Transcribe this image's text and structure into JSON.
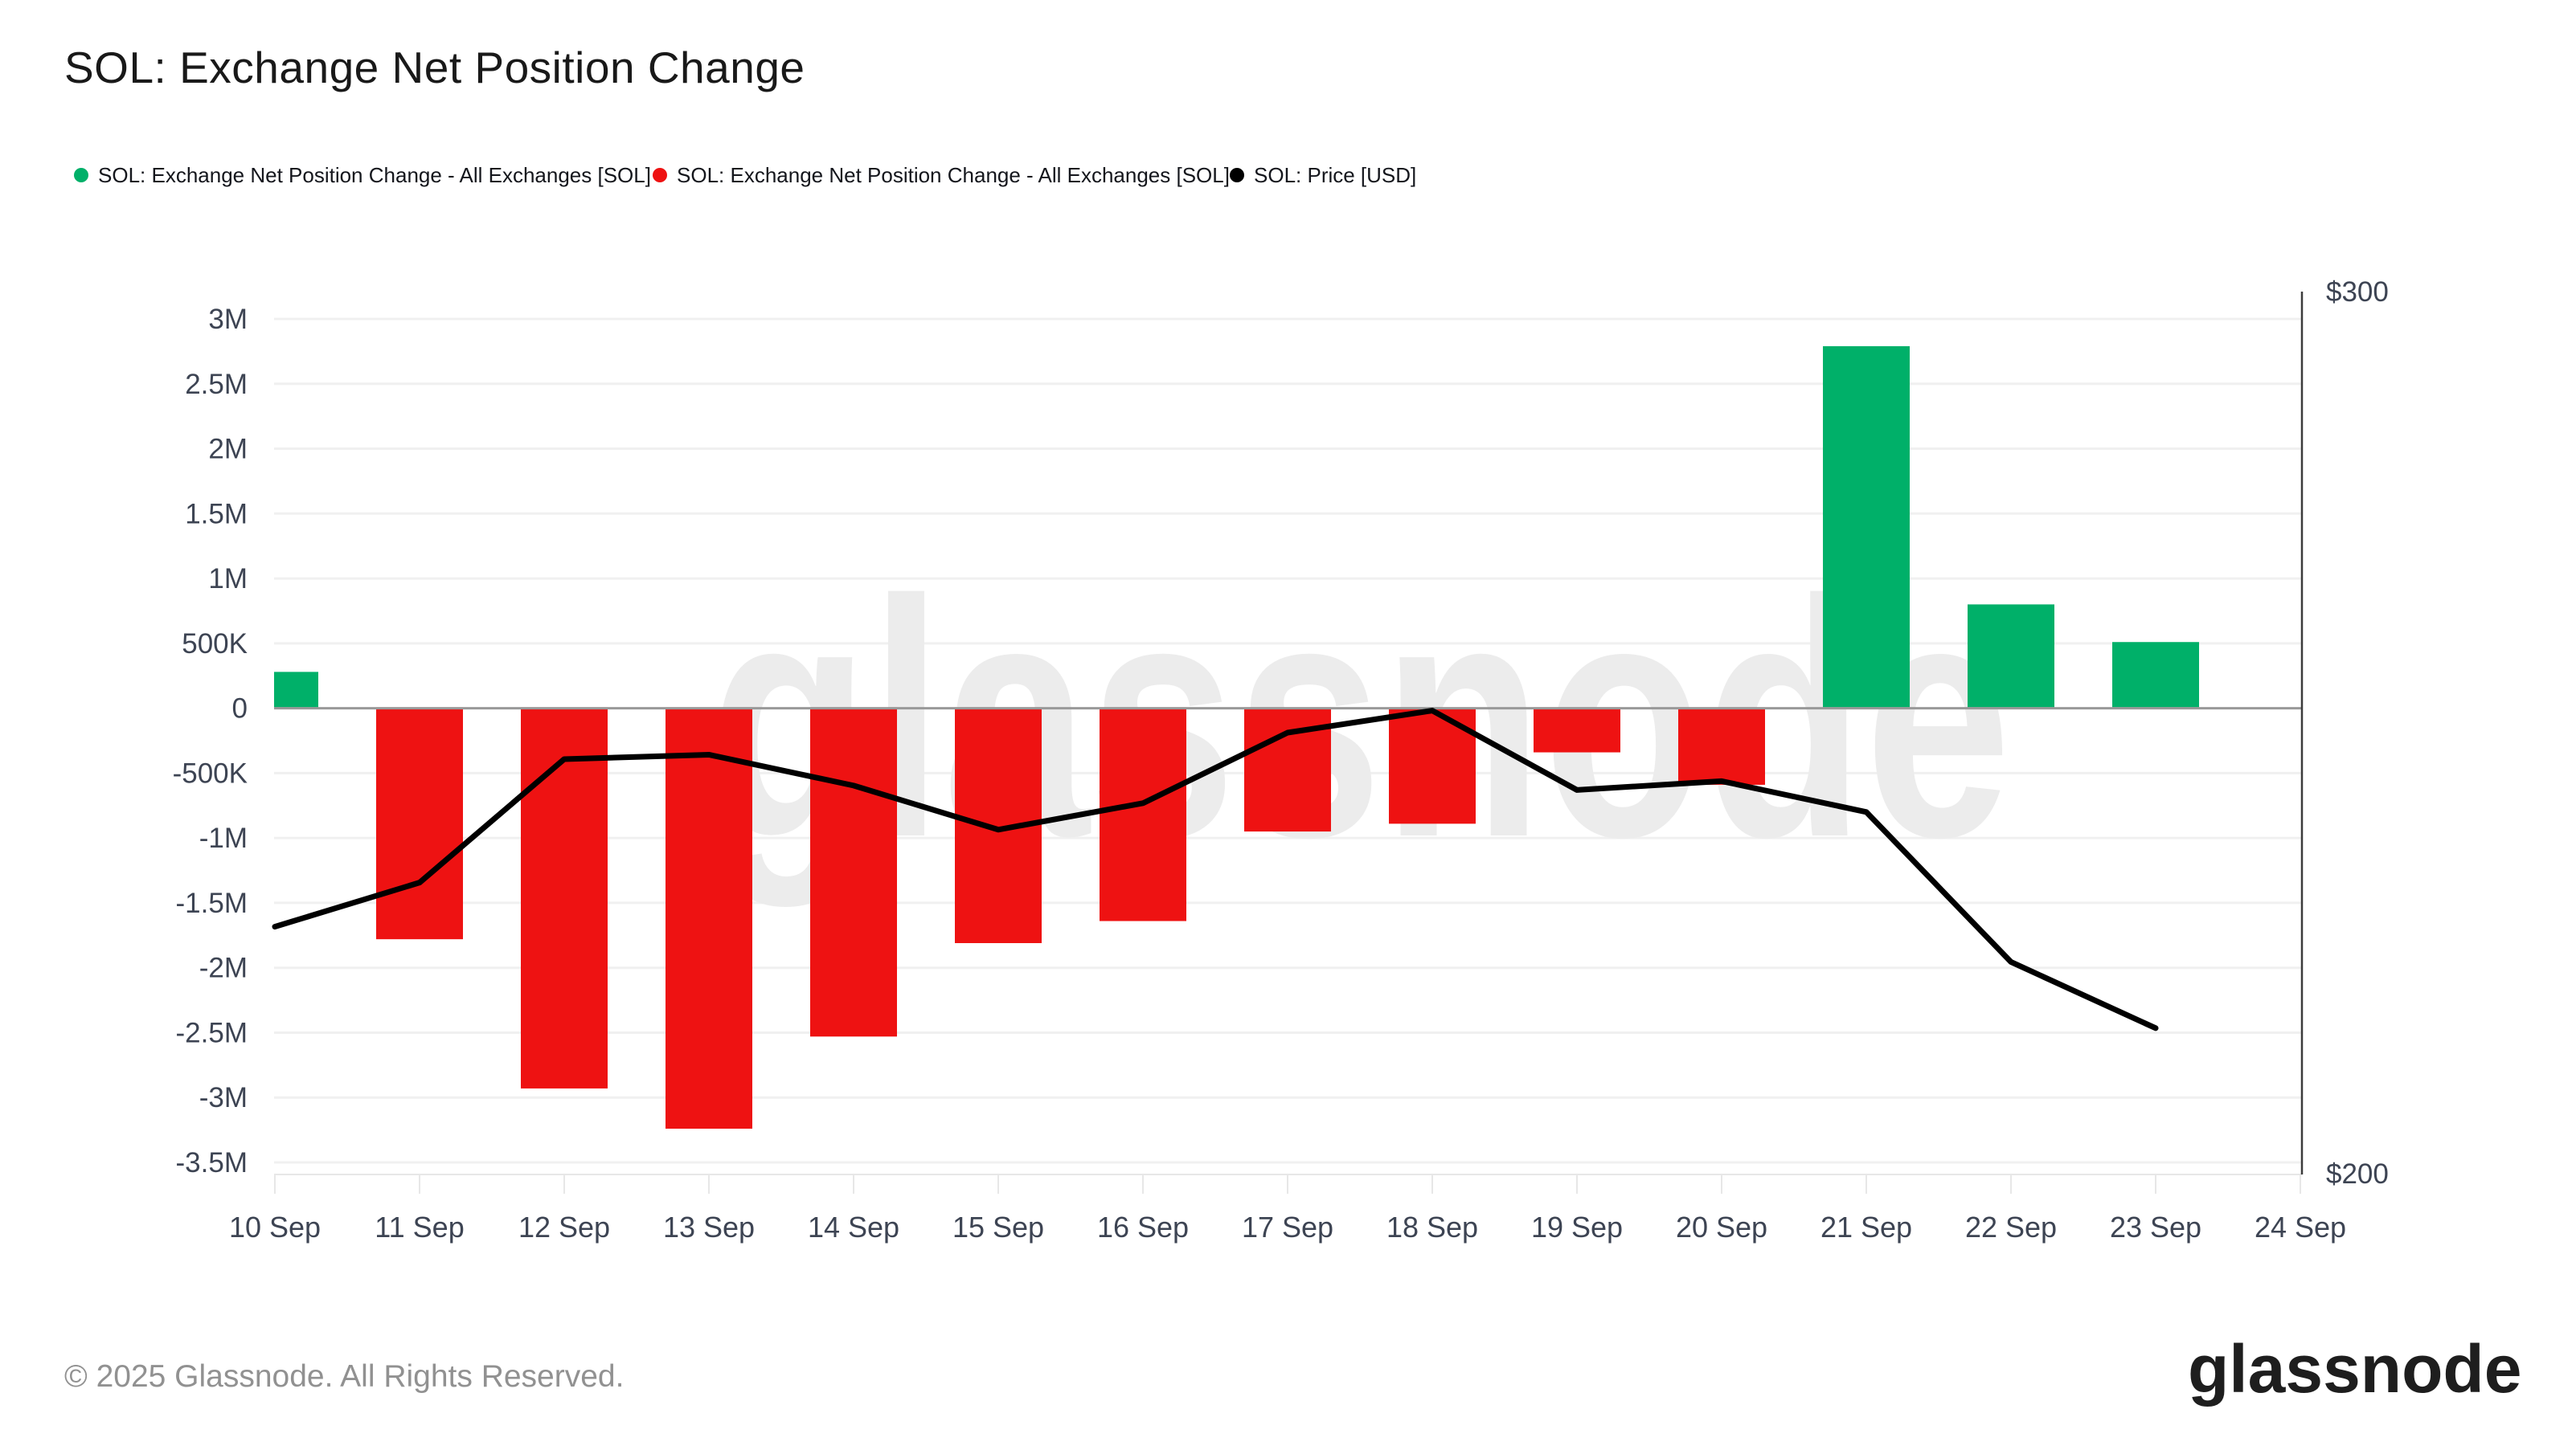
{
  "header": {
    "title": "SOL: Exchange Net Position Change",
    "legend": [
      {
        "label": "SOL: Exchange Net Position Change - All Exchanges [SOL]",
        "color": "#00b069"
      },
      {
        "label": "SOL: Exchange Net Position Change - All Exchanges [SOL]",
        "color": "#ee1212"
      },
      {
        "label": "SOL: Price [USD]",
        "color": "#000000"
      }
    ]
  },
  "watermark": "glassnode",
  "footer": {
    "copyright": "© 2025 Glassnode. All Rights Reserved.",
    "logo": "glassnode"
  },
  "colors": {
    "positive_bar": "#00b069",
    "negative_bar": "#ee1212",
    "price_line": "#000000",
    "gridline": "#f0f0f0",
    "zero_line": "#999999",
    "right_axis_line": "#3c3c3c",
    "tick_label": "#3d4453",
    "watermark": "#ececec"
  },
  "chart_data": {
    "type": "bar+line",
    "title": "SOL: Exchange Net Position Change",
    "categories": [
      "10 Sep",
      "11 Sep",
      "12 Sep",
      "13 Sep",
      "14 Sep",
      "15 Sep",
      "16 Sep",
      "17 Sep",
      "18 Sep",
      "19 Sep",
      "20 Sep",
      "21 Sep",
      "22 Sep",
      "23 Sep"
    ],
    "x_axis_tick_labels": [
      "10 Sep",
      "11 Sep",
      "12 Sep",
      "13 Sep",
      "14 Sep",
      "15 Sep",
      "16 Sep",
      "17 Sep",
      "18 Sep",
      "19 Sep",
      "20 Sep",
      "21 Sep",
      "22 Sep",
      "23 Sep",
      "24 Sep"
    ],
    "series": [
      {
        "name": "SOL: Exchange Net Position Change - All Exchanges [SOL]",
        "type": "bar",
        "axis": "left",
        "unit": "SOL",
        "positive_color": "#00b069",
        "negative_color": "#ee1212",
        "values": [
          280000,
          -1780000,
          -2930000,
          -3240000,
          -2530000,
          -1810000,
          -1640000,
          -950000,
          -890000,
          -340000,
          -590000,
          2790000,
          800000,
          510000
        ]
      },
      {
        "name": "SOL: Price [USD]",
        "type": "line",
        "axis": "right",
        "unit": "USD",
        "color": "#000000",
        "values": [
          228,
          233,
          247,
          247.5,
          244,
          239,
          242,
          250,
          252.5,
          243.5,
          244.5,
          241,
          224,
          216.5
        ]
      }
    ],
    "y_axis_left": {
      "range": [
        -3500000,
        3000000
      ],
      "ticks": [
        {
          "label": "3M",
          "value": 3000000
        },
        {
          "label": "2.5M",
          "value": 2500000
        },
        {
          "label": "2M",
          "value": 2000000
        },
        {
          "label": "1.5M",
          "value": 1500000
        },
        {
          "label": "1M",
          "value": 1000000
        },
        {
          "label": "500K",
          "value": 500000
        },
        {
          "label": "0",
          "value": 0
        },
        {
          "label": "-500K",
          "value": -500000
        },
        {
          "label": "-1M",
          "value": -1000000
        },
        {
          "label": "-1.5M",
          "value": -1500000
        },
        {
          "label": "-2M",
          "value": -2000000
        },
        {
          "label": "-2.5M",
          "value": -2500000
        },
        {
          "label": "-3M",
          "value": -3000000
        },
        {
          "label": "-3.5M",
          "value": -3500000
        }
      ]
    },
    "y_axis_right": {
      "range": [
        200,
        300
      ],
      "ticks": [
        {
          "label": "$300",
          "value": 300
        },
        {
          "label": "$200",
          "value": 200
        }
      ]
    },
    "grid": true,
    "legend_position": "top"
  }
}
